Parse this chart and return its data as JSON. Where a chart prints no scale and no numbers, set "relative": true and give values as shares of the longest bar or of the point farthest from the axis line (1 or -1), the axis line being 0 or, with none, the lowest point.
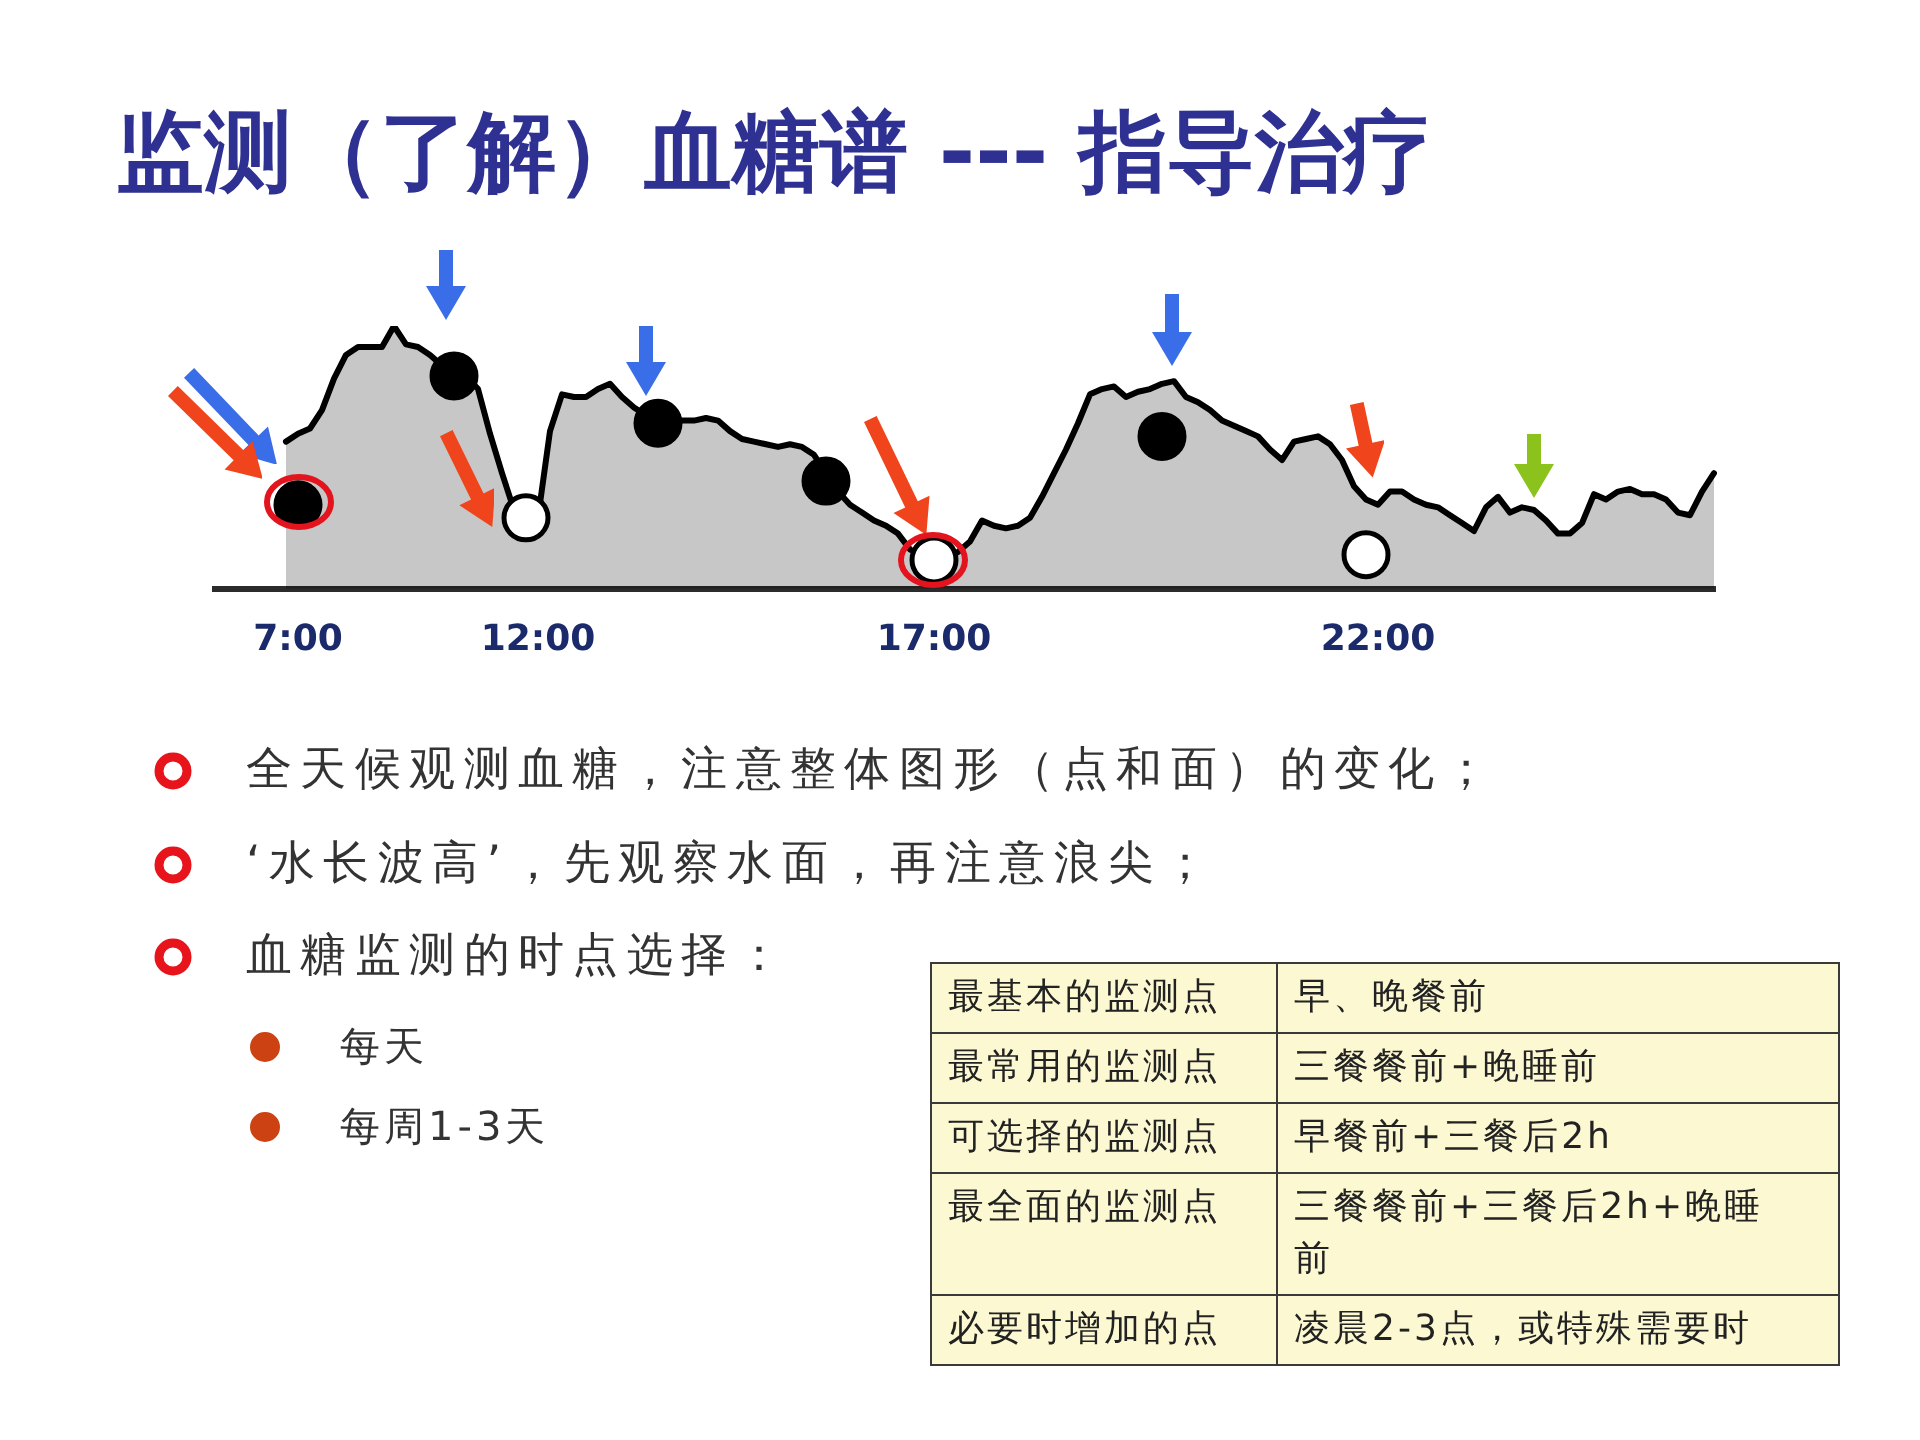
{
  "chart_data": {
    "type": "area",
    "title": "监测（了解）血糖谱 --- 指导治疗",
    "relative": true,
    "categories": [
      null,
      null,
      null,
      null,
      null,
      null,
      null,
      "7:00",
      null,
      null,
      null,
      null,
      null,
      null,
      null,
      null,
      null,
      null,
      null,
      null,
      null,
      null,
      null,
      null,
      null,
      null,
      null,
      "12:00",
      null,
      null,
      null,
      null,
      null,
      null,
      null,
      null,
      null,
      null,
      null,
      null,
      null,
      null,
      null,
      null,
      null,
      null,
      null,
      null,
      null,
      null,
      null,
      null,
      null,
      null,
      null,
      null,
      null,
      null,
      null,
      null,
      "17:00",
      null,
      null,
      null,
      null,
      null,
      null,
      null,
      null,
      null,
      null,
      null,
      null,
      null,
      null,
      null,
      null,
      null,
      null,
      null,
      null,
      null,
      null,
      null,
      null,
      null,
      null,
      null,
      null,
      null,
      null,
      null,
      null,
      null,
      null,
      null,
      null,
      "22:00",
      null,
      null,
      null,
      null,
      null,
      null,
      null,
      null,
      null,
      null,
      null,
      null,
      null,
      null,
      null,
      null,
      null,
      null,
      null,
      null,
      null,
      null,
      null,
      null,
      null,
      null,
      null,
      null
    ],
    "series": [
      {
        "color": "#000000",
        "values": [
          null,
          null,
          null,
          null,
          null,
          null,
          0.56,
          0.59,
          0.61,
          0.68,
          0.8,
          0.89,
          0.92,
          0.92,
          0.92,
          1.0,
          0.93,
          0.92,
          0.89,
          0.85,
          0.82,
          0.81,
          0.76,
          0.59,
          0.44,
          0.3,
          0.24,
          0.27,
          0.6,
          0.74,
          0.73,
          0.73,
          0.76,
          0.78,
          0.73,
          0.69,
          0.66,
          0.64,
          0.64,
          0.64,
          0.64,
          0.65,
          0.64,
          0.6,
          0.57,
          0.56,
          0.55,
          0.54,
          0.55,
          0.54,
          0.51,
          0.44,
          0.37,
          0.32,
          0.29,
          0.26,
          0.24,
          0.21,
          0.15,
          0.13,
          0.12,
          0.12,
          0.14,
          0.18,
          0.26,
          0.24,
          0.23,
          0.24,
          0.27,
          0.35,
          0.44,
          0.53,
          0.63,
          0.74,
          0.76,
          0.77,
          0.73,
          0.75,
          0.76,
          0.78,
          0.79,
          0.73,
          0.71,
          0.68,
          0.64,
          0.62,
          0.6,
          0.58,
          0.53,
          0.49,
          0.56,
          0.57,
          0.58,
          0.55,
          0.49,
          0.39,
          0.34,
          0.32,
          0.37,
          0.37,
          0.34,
          0.32,
          0.31,
          0.28,
          0.25,
          0.22,
          0.31,
          0.35,
          0.29,
          0.31,
          0.3,
          0.26,
          0.21,
          0.21,
          0.25,
          0.36,
          0.34,
          0.37,
          0.38,
          0.36,
          0.36,
          0.34,
          0.29,
          0.28,
          0.37,
          0.44
        ]
      },
      {
        "type": "scatter",
        "marker": "circle",
        "color": "#000000",
        "values": [
          null,
          null,
          null,
          null,
          null,
          null,
          null,
          0.32,
          null,
          null,
          null,
          null,
          null,
          null,
          null,
          null,
          null,
          null,
          null,
          null,
          0.81,
          null,
          null,
          null,
          null,
          null,
          null,
          null,
          null,
          null,
          null,
          null,
          null,
          null,
          null,
          null,
          null,
          0.63,
          null,
          null,
          null,
          null,
          null,
          null,
          null,
          null,
          null,
          null,
          null,
          null,
          null,
          0.41,
          null,
          null,
          null,
          null,
          null,
          null,
          null,
          null,
          null,
          null,
          null,
          null,
          null,
          null,
          null,
          null,
          null,
          null,
          null,
          null,
          null,
          null,
          null,
          null,
          null,
          null,
          null,
          0.58,
          null,
          null,
          null,
          null,
          null,
          null,
          null,
          null,
          null,
          null,
          null,
          null,
          null,
          null,
          null,
          null,
          null,
          null,
          null,
          null,
          null,
          null,
          null,
          null,
          null,
          null,
          null,
          null,
          null,
          null,
          null,
          null,
          null,
          null,
          null,
          null,
          null,
          null,
          null,
          null,
          null,
          null,
          null,
          null,
          null,
          null
        ]
      },
      {
        "type": "scatter",
        "marker": "circle",
        "color": "#ffffff",
        "values": [
          null,
          null,
          null,
          null,
          null,
          null,
          null,
          null,
          null,
          null,
          null,
          null,
          null,
          null,
          null,
          null,
          null,
          null,
          null,
          null,
          null,
          null,
          null,
          null,
          null,
          null,
          0.27,
          null,
          null,
          null,
          null,
          null,
          null,
          null,
          null,
          null,
          null,
          null,
          null,
          null,
          null,
          null,
          null,
          null,
          null,
          null,
          null,
          null,
          null,
          null,
          null,
          null,
          null,
          null,
          null,
          null,
          null,
          null,
          null,
          null,
          0.11,
          null,
          null,
          null,
          null,
          null,
          null,
          null,
          null,
          null,
          null,
          null,
          null,
          null,
          null,
          null,
          null,
          null,
          null,
          null,
          null,
          null,
          null,
          null,
          null,
          null,
          null,
          null,
          null,
          null,
          null,
          null,
          null,
          null,
          null,
          null,
          0.13,
          null,
          null,
          null,
          null,
          null,
          null,
          null,
          null,
          null,
          null,
          null,
          null,
          null,
          null,
          null,
          null,
          null,
          null,
          null,
          null,
          null,
          null,
          null,
          null,
          null,
          null,
          null,
          null,
          null
        ]
      }
    ],
    "annotations": [
      "全天候观测血糖，注意整体图形（点和面）的变化；",
      "‘水长波高’，先观察水面，再注意浪尖；",
      "血糖监测的时点选择：",
      "每天",
      "每周1-3天",
      "最基本的监测点",
      "早、晚餐前",
      "最常用的监测点",
      "三餐餐前+晚睡前",
      "可选择的监测点",
      "早餐前+三餐后2h",
      "最全面的监测点",
      "三餐餐前+三餐后2h+晚睡前",
      "必要时增加的点",
      "凌晨2-3点，或特殊需要时"
    ]
  }
}
